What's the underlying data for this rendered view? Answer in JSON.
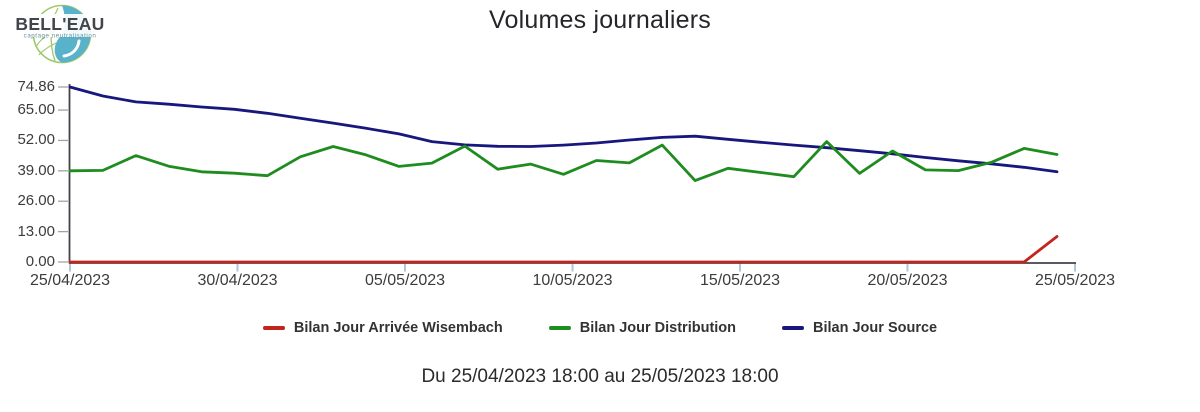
{
  "logo": {
    "brand": "BELL'EAU",
    "tagline": "captage neutralisation",
    "colors": {
      "leaf_green": "#9dc96a",
      "water_blue": "#58b2c9",
      "brand_text": "#44444c",
      "tagline_text": "#66929e"
    }
  },
  "header": {
    "title": "Volumes journaliers"
  },
  "footer": {
    "date_range": "Du 25/04/2023 18:00 au 25/05/2023 18:00"
  },
  "axis_style": {
    "axis_color": "#43434b",
    "y_tick_color": "#a3a3a3",
    "x_tick_color": "#aec6d8",
    "label_color": "#3c3c3c"
  },
  "chart_data": {
    "type": "line",
    "title": "Volumes journaliers",
    "grid": false,
    "legend_position": "bottom",
    "x_axis": {
      "tick_labels": [
        "25/04/2023",
        "30/04/2023",
        "05/05/2023",
        "10/05/2023",
        "15/05/2023",
        "20/05/2023",
        "25/05/2023"
      ],
      "tick_days": [
        0,
        5,
        10,
        15,
        20,
        25,
        30
      ],
      "total_days": 30
    },
    "y_axis": {
      "tick_labels": [
        "0.00",
        "13.00",
        "26.00",
        "39.00",
        "52.00",
        "65.00",
        "74.86"
      ],
      "tick_values": [
        0,
        13,
        26,
        39,
        52,
        65,
        74.86
      ],
      "min": 0,
      "max": 74.86
    },
    "series": [
      {
        "name": "Bilan Jour Arrivée Wisembach",
        "color": "#c3241c",
        "values": [
          0,
          0,
          0,
          0,
          0,
          0,
          0,
          0,
          0,
          0,
          0,
          0,
          0,
          0,
          0,
          0,
          0,
          0,
          0,
          0,
          0,
          0,
          0,
          0,
          0,
          0,
          0,
          0,
          0,
          0,
          10.9
        ]
      },
      {
        "name": "Bilan Jour Distribution",
        "color": "#1f8c1f",
        "values": [
          39.0,
          39.2,
          45.5,
          41.0,
          38.6,
          38.0,
          36.9,
          45.0,
          49.4,
          45.8,
          40.9,
          42.3,
          49.6,
          39.7,
          41.9,
          37.5,
          43.4,
          42.4,
          50.0,
          34.8,
          40.1,
          38.3,
          36.5,
          51.5,
          37.9,
          47.5,
          39.4,
          39.1,
          42.6,
          48.6,
          46.0
        ]
      },
      {
        "name": "Bilan Jour Source",
        "color": "#17177d",
        "values": [
          74.86,
          71.0,
          68.5,
          67.5,
          66.3,
          65.3,
          63.6,
          61.5,
          59.4,
          57.2,
          54.8,
          51.5,
          50.1,
          49.5,
          49.4,
          50.0,
          50.9,
          52.2,
          53.3,
          53.8,
          52.5,
          51.2,
          50.0,
          48.9,
          47.6,
          46.3,
          44.7,
          43.3,
          42.0,
          40.5,
          38.6
        ]
      }
    ]
  }
}
